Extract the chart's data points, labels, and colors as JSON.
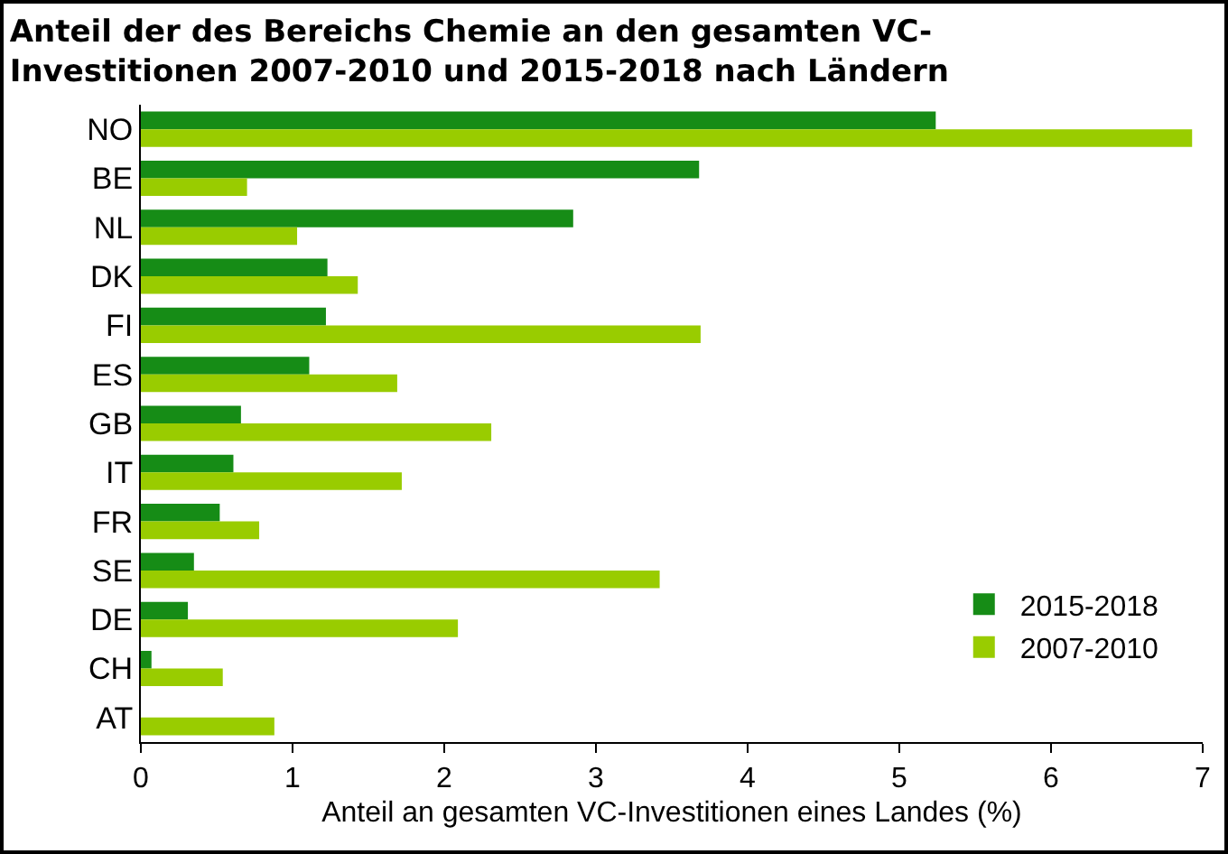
{
  "chart_data": {
    "type": "bar",
    "orientation": "horizontal",
    "title": "Anteil der des Bereichs Chemie an den gesamten VC-\nInvestitionen 2007-2010 und 2015-2018 nach Ländern",
    "xlabel": "Anteil an gesamten VC-Investitionen eines Landes (%)",
    "categories": [
      "NO",
      "BE",
      "NL",
      "DK",
      "FI",
      "ES",
      "GB",
      "IT",
      "FR",
      "SE",
      "DE",
      "CH",
      "AT"
    ],
    "series": [
      {
        "name": "2015-2018",
        "color": "#168c16",
        "values": [
          5.24,
          3.68,
          2.85,
          1.23,
          1.22,
          1.11,
          0.66,
          0.61,
          0.52,
          0.35,
          0.31,
          0.07,
          0
        ]
      },
      {
        "name": "2007-2010",
        "color": "#99cc00",
        "values": [
          6.93,
          0.7,
          1.03,
          1.43,
          3.69,
          1.69,
          2.31,
          1.72,
          0.78,
          3.42,
          2.09,
          0.54,
          0.88
        ]
      }
    ],
    "xlim": [
      0,
      7
    ],
    "xticks": [
      0,
      1,
      2,
      3,
      4,
      5,
      6,
      7
    ],
    "grid": false,
    "legend": "bottom right"
  }
}
